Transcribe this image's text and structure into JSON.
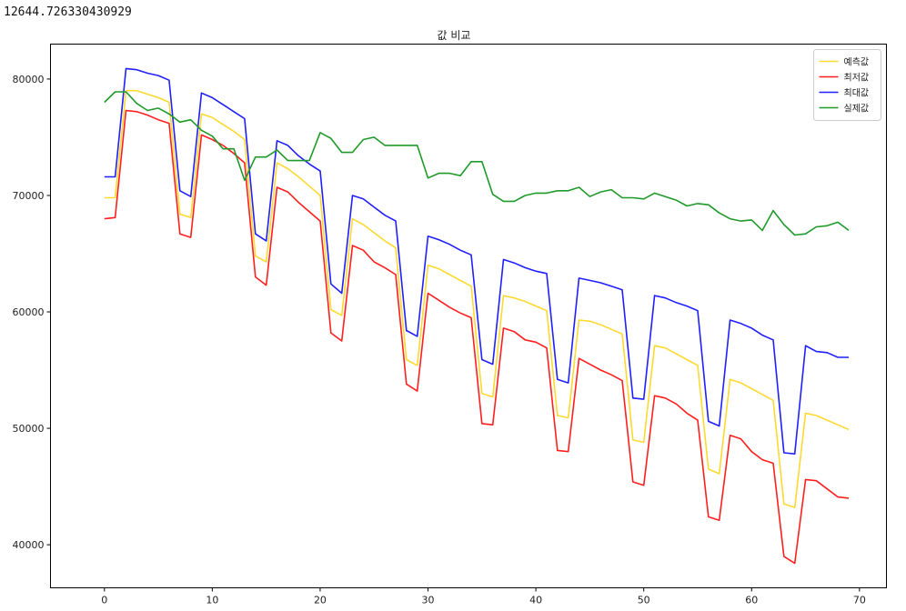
{
  "output": {
    "printed_value": "12644.726330430929"
  },
  "chart_data": {
    "type": "line",
    "title": "값 비교",
    "xlabel": "",
    "ylabel": "",
    "xlim": [
      -5,
      72.5
    ],
    "ylim": [
      36300,
      83000
    ],
    "xticks": [
      0,
      10,
      20,
      30,
      40,
      50,
      60,
      70
    ],
    "yticks": [
      40000,
      50000,
      60000,
      70000,
      80000
    ],
    "grid": false,
    "legend_position": "top-right",
    "x": [
      0,
      1,
      2,
      3,
      4,
      5,
      6,
      7,
      8,
      9,
      10,
      11,
      12,
      13,
      14,
      15,
      16,
      17,
      18,
      19,
      20,
      21,
      22,
      23,
      24,
      25,
      26,
      27,
      28,
      29,
      30,
      31,
      32,
      33,
      34,
      35,
      36,
      37,
      38,
      39,
      40,
      41,
      42,
      43,
      44,
      45,
      46,
      47,
      48,
      49,
      50,
      51,
      52,
      53,
      54,
      55,
      56,
      57,
      58,
      59,
      60,
      61,
      62,
      63,
      64,
      65,
      66,
      67,
      68,
      69
    ],
    "series": [
      {
        "name": "예측값",
        "color": "#ffd92f",
        "values": [
          69800,
          69800,
          79000,
          79000,
          78700,
          78400,
          78000,
          68400,
          68100,
          77000,
          76700,
          76100,
          75500,
          74800,
          64800,
          64300,
          72800,
          72300,
          71600,
          70800,
          70000,
          60200,
          59700,
          68000,
          67500,
          66800,
          66100,
          65500,
          55900,
          55400,
          64000,
          63700,
          63200,
          62700,
          62200,
          53000,
          52700,
          61400,
          61200,
          60900,
          60500,
          60100,
          51100,
          50900,
          59300,
          59200,
          58900,
          58500,
          58100,
          49000,
          48800,
          57100,
          56900,
          56400,
          55900,
          55400,
          46500,
          46100,
          54200,
          53900,
          53400,
          52900,
          52400,
          43500,
          43200,
          51300,
          51100,
          50700,
          50300,
          49900
        ]
      },
      {
        "name": "최저값",
        "color": "#ff1f1f",
        "values": [
          68000,
          68100,
          77300,
          77200,
          76900,
          76500,
          76200,
          66700,
          66400,
          75200,
          74800,
          74300,
          73600,
          72800,
          63000,
          62300,
          70700,
          70300,
          69400,
          68600,
          67800,
          58200,
          57500,
          65700,
          65300,
          64300,
          63800,
          63200,
          53800,
          53200,
          61600,
          61000,
          60400,
          59900,
          59500,
          50400,
          50300,
          58600,
          58300,
          57600,
          57400,
          56900,
          48100,
          48000,
          56000,
          55500,
          55000,
          54600,
          54100,
          45400,
          45100,
          52800,
          52600,
          52100,
          51300,
          50700,
          42400,
          42100,
          49400,
          49100,
          48000,
          47300,
          47000,
          39000,
          38400,
          45600,
          45500,
          44800,
          44100,
          44000
        ]
      },
      {
        "name": "최대값",
        "color": "#1f1fff",
        "values": [
          71600,
          71600,
          80900,
          80800,
          80500,
          80300,
          79900,
          70400,
          69900,
          78800,
          78400,
          77800,
          77200,
          76600,
          66700,
          66100,
          74700,
          74300,
          73400,
          72700,
          72100,
          62400,
          61600,
          70000,
          69700,
          69000,
          68300,
          67800,
          58400,
          57900,
          66500,
          66200,
          65800,
          65300,
          64900,
          55900,
          55500,
          64500,
          64200,
          63800,
          63500,
          63300,
          54200,
          53900,
          62900,
          62700,
          62500,
          62200,
          61900,
          52600,
          52500,
          61400,
          61200,
          60800,
          60500,
          60100,
          50600,
          50200,
          59300,
          59000,
          58600,
          58000,
          57600,
          47900,
          47800,
          57100,
          56600,
          56500,
          56100,
          56100
        ]
      },
      {
        "name": "실제값",
        "color": "#1f9a2a",
        "values": [
          78000,
          78900,
          78900,
          77900,
          77300,
          77500,
          77000,
          76300,
          76500,
          75600,
          75100,
          74000,
          74000,
          71300,
          73300,
          73300,
          73900,
          73000,
          73000,
          73000,
          75400,
          74900,
          73700,
          73700,
          74800,
          75000,
          74300,
          74300,
          74300,
          74300,
          71500,
          71900,
          71900,
          71700,
          72900,
          72900,
          70100,
          69500,
          69500,
          70000,
          70200,
          70200,
          70400,
          70400,
          70700,
          69900,
          70300,
          70500,
          69800,
          69800,
          69700,
          70200,
          69900,
          69600,
          69100,
          69300,
          69200,
          68500,
          68000,
          67800,
          67900,
          67000,
          68700,
          67500,
          66600,
          66700,
          67300,
          67400,
          67700,
          67000
        ]
      }
    ]
  }
}
